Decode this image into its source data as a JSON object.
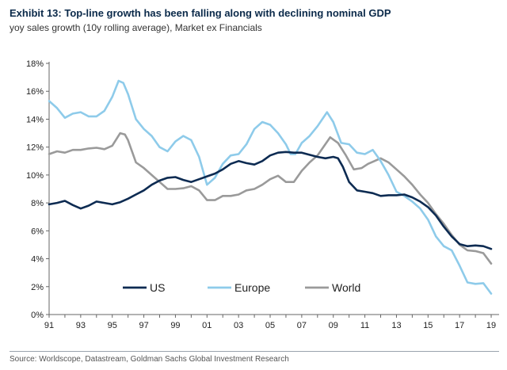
{
  "header": {
    "title": "Exhibit 13: Top-line growth has been falling along with declining nominal GDP",
    "subtitle": "yoy sales growth (10y rolling average), Market ex Financials"
  },
  "footer": {
    "source": "Source: Worldscope, Datastream, Goldman Sachs Global Investment Research"
  },
  "chart_data": {
    "type": "line",
    "title": "Exhibit 13: Top-line growth has been falling along with declining nominal GDP",
    "subtitle": "yoy sales growth (10y rolling average), Market ex Financials",
    "xlabel": "",
    "ylabel": "",
    "xlim": [
      1991,
      2019.5
    ],
    "ylim": [
      0,
      18
    ],
    "x_ticks": [
      1991,
      1993,
      1995,
      1997,
      1999,
      2001,
      2003,
      2005,
      2007,
      2009,
      2011,
      2013,
      2015,
      2017,
      2019
    ],
    "x_tick_labels": [
      "91",
      "93",
      "95",
      "97",
      "99",
      "01",
      "03",
      "05",
      "07",
      "09",
      "11",
      "13",
      "15",
      "17",
      "19"
    ],
    "y_ticks": [
      0,
      2,
      4,
      6,
      8,
      10,
      12,
      14,
      16,
      18
    ],
    "y_tick_labels": [
      "0%",
      "2%",
      "4%",
      "6%",
      "8%",
      "10%",
      "12%",
      "14%",
      "16%",
      "18%"
    ],
    "grid": false,
    "legend_position": "bottom-inside",
    "series": [
      {
        "name": "US",
        "color": "#0d2b52",
        "points": [
          [
            1991.0,
            7.9
          ],
          [
            1991.5,
            8.0
          ],
          [
            1992.0,
            8.15
          ],
          [
            1992.5,
            7.85
          ],
          [
            1993.0,
            7.6
          ],
          [
            1993.5,
            7.8
          ],
          [
            1994.0,
            8.1
          ],
          [
            1994.5,
            8.0
          ],
          [
            1995.0,
            7.9
          ],
          [
            1995.5,
            8.05
          ],
          [
            1996.0,
            8.3
          ],
          [
            1996.5,
            8.6
          ],
          [
            1997.0,
            8.9
          ],
          [
            1997.5,
            9.3
          ],
          [
            1998.0,
            9.6
          ],
          [
            1998.5,
            9.8
          ],
          [
            1999.0,
            9.85
          ],
          [
            1999.5,
            9.65
          ],
          [
            2000.0,
            9.5
          ],
          [
            2000.5,
            9.7
          ],
          [
            2001.0,
            9.9
          ],
          [
            2001.5,
            10.1
          ],
          [
            2002.0,
            10.4
          ],
          [
            2002.5,
            10.8
          ],
          [
            2003.0,
            11.0
          ],
          [
            2003.5,
            10.85
          ],
          [
            2004.0,
            10.75
          ],
          [
            2004.5,
            11.0
          ],
          [
            2005.0,
            11.4
          ],
          [
            2005.5,
            11.6
          ],
          [
            2006.0,
            11.65
          ],
          [
            2006.5,
            11.6
          ],
          [
            2007.0,
            11.6
          ],
          [
            2007.5,
            11.45
          ],
          [
            2008.0,
            11.3
          ],
          [
            2008.5,
            11.2
          ],
          [
            2009.0,
            11.3
          ],
          [
            2009.3,
            11.2
          ],
          [
            2009.6,
            10.6
          ],
          [
            2010.0,
            9.5
          ],
          [
            2010.5,
            8.9
          ],
          [
            2011.0,
            8.8
          ],
          [
            2011.5,
            8.7
          ],
          [
            2012.0,
            8.5
          ],
          [
            2012.5,
            8.55
          ],
          [
            2013.0,
            8.55
          ],
          [
            2013.5,
            8.6
          ],
          [
            2014.0,
            8.4
          ],
          [
            2014.5,
            8.1
          ],
          [
            2015.0,
            7.7
          ],
          [
            2015.5,
            7.1
          ],
          [
            2016.0,
            6.3
          ],
          [
            2016.5,
            5.6
          ],
          [
            2017.0,
            5.05
          ],
          [
            2017.5,
            4.9
          ],
          [
            2018.0,
            4.95
          ],
          [
            2018.5,
            4.9
          ],
          [
            2019.0,
            4.7
          ]
        ]
      },
      {
        "name": "Europe",
        "color": "#8ecbea",
        "points": [
          [
            1991.0,
            15.3
          ],
          [
            1991.5,
            14.8
          ],
          [
            1992.0,
            14.1
          ],
          [
            1992.5,
            14.4
          ],
          [
            1993.0,
            14.5
          ],
          [
            1993.5,
            14.2
          ],
          [
            1994.0,
            14.2
          ],
          [
            1994.5,
            14.6
          ],
          [
            1995.0,
            15.6
          ],
          [
            1995.4,
            16.75
          ],
          [
            1995.7,
            16.6
          ],
          [
            1996.0,
            15.8
          ],
          [
            1996.5,
            14.0
          ],
          [
            1997.0,
            13.3
          ],
          [
            1997.5,
            12.8
          ],
          [
            1998.0,
            12.0
          ],
          [
            1998.5,
            11.7
          ],
          [
            1999.0,
            12.4
          ],
          [
            1999.5,
            12.8
          ],
          [
            2000.0,
            12.5
          ],
          [
            2000.5,
            11.3
          ],
          [
            2001.0,
            9.3
          ],
          [
            2001.5,
            9.8
          ],
          [
            2002.0,
            10.8
          ],
          [
            2002.5,
            11.4
          ],
          [
            2003.0,
            11.5
          ],
          [
            2003.5,
            12.2
          ],
          [
            2004.0,
            13.3
          ],
          [
            2004.5,
            13.8
          ],
          [
            2005.0,
            13.6
          ],
          [
            2005.5,
            13.0
          ],
          [
            2006.0,
            12.2
          ],
          [
            2006.3,
            11.5
          ],
          [
            2006.6,
            11.5
          ],
          [
            2007.0,
            12.3
          ],
          [
            2007.5,
            12.8
          ],
          [
            2008.0,
            13.5
          ],
          [
            2008.6,
            14.5
          ],
          [
            2009.0,
            13.8
          ],
          [
            2009.5,
            12.3
          ],
          [
            2010.0,
            12.2
          ],
          [
            2010.5,
            11.6
          ],
          [
            2011.0,
            11.5
          ],
          [
            2011.5,
            11.8
          ],
          [
            2012.0,
            11.0
          ],
          [
            2012.5,
            10.0
          ],
          [
            2013.0,
            8.8
          ],
          [
            2013.5,
            8.5
          ],
          [
            2014.0,
            8.1
          ],
          [
            2014.5,
            7.6
          ],
          [
            2015.0,
            6.8
          ],
          [
            2015.5,
            5.6
          ],
          [
            2016.0,
            4.9
          ],
          [
            2016.5,
            4.6
          ],
          [
            2017.0,
            3.5
          ],
          [
            2017.5,
            2.3
          ],
          [
            2018.0,
            2.2
          ],
          [
            2018.5,
            2.25
          ],
          [
            2019.0,
            1.5
          ]
        ]
      },
      {
        "name": "World",
        "color": "#9a9a9a",
        "points": [
          [
            1991.0,
            11.5
          ],
          [
            1991.5,
            11.7
          ],
          [
            1992.0,
            11.6
          ],
          [
            1992.5,
            11.8
          ],
          [
            1993.0,
            11.8
          ],
          [
            1993.5,
            11.9
          ],
          [
            1994.0,
            11.95
          ],
          [
            1994.5,
            11.85
          ],
          [
            1995.0,
            12.1
          ],
          [
            1995.5,
            13.0
          ],
          [
            1995.8,
            12.9
          ],
          [
            1996.0,
            12.5
          ],
          [
            1996.5,
            10.9
          ],
          [
            1997.0,
            10.5
          ],
          [
            1997.5,
            10.0
          ],
          [
            1998.0,
            9.5
          ],
          [
            1998.5,
            9.0
          ],
          [
            1999.0,
            9.0
          ],
          [
            1999.5,
            9.05
          ],
          [
            2000.0,
            9.2
          ],
          [
            2000.5,
            8.9
          ],
          [
            2001.0,
            8.2
          ],
          [
            2001.5,
            8.2
          ],
          [
            2002.0,
            8.5
          ],
          [
            2002.5,
            8.5
          ],
          [
            2003.0,
            8.6
          ],
          [
            2003.5,
            8.9
          ],
          [
            2004.0,
            9.0
          ],
          [
            2004.5,
            9.3
          ],
          [
            2005.0,
            9.7
          ],
          [
            2005.5,
            9.95
          ],
          [
            2006.0,
            9.5
          ],
          [
            2006.5,
            9.5
          ],
          [
            2007.0,
            10.3
          ],
          [
            2007.5,
            10.9
          ],
          [
            2008.0,
            11.4
          ],
          [
            2008.8,
            12.7
          ],
          [
            2009.3,
            12.3
          ],
          [
            2009.8,
            11.4
          ],
          [
            2010.3,
            10.4
          ],
          [
            2010.8,
            10.5
          ],
          [
            2011.2,
            10.8
          ],
          [
            2011.6,
            11.0
          ],
          [
            2012.0,
            11.2
          ],
          [
            2012.5,
            10.9
          ],
          [
            2013.0,
            10.4
          ],
          [
            2013.5,
            9.9
          ],
          [
            2014.0,
            9.3
          ],
          [
            2014.5,
            8.6
          ],
          [
            2015.0,
            8.0
          ],
          [
            2015.5,
            7.2
          ],
          [
            2016.0,
            6.5
          ],
          [
            2016.5,
            5.7
          ],
          [
            2017.0,
            5.0
          ],
          [
            2017.5,
            4.6
          ],
          [
            2018.0,
            4.55
          ],
          [
            2018.5,
            4.4
          ],
          [
            2019.0,
            3.65
          ]
        ]
      }
    ]
  }
}
